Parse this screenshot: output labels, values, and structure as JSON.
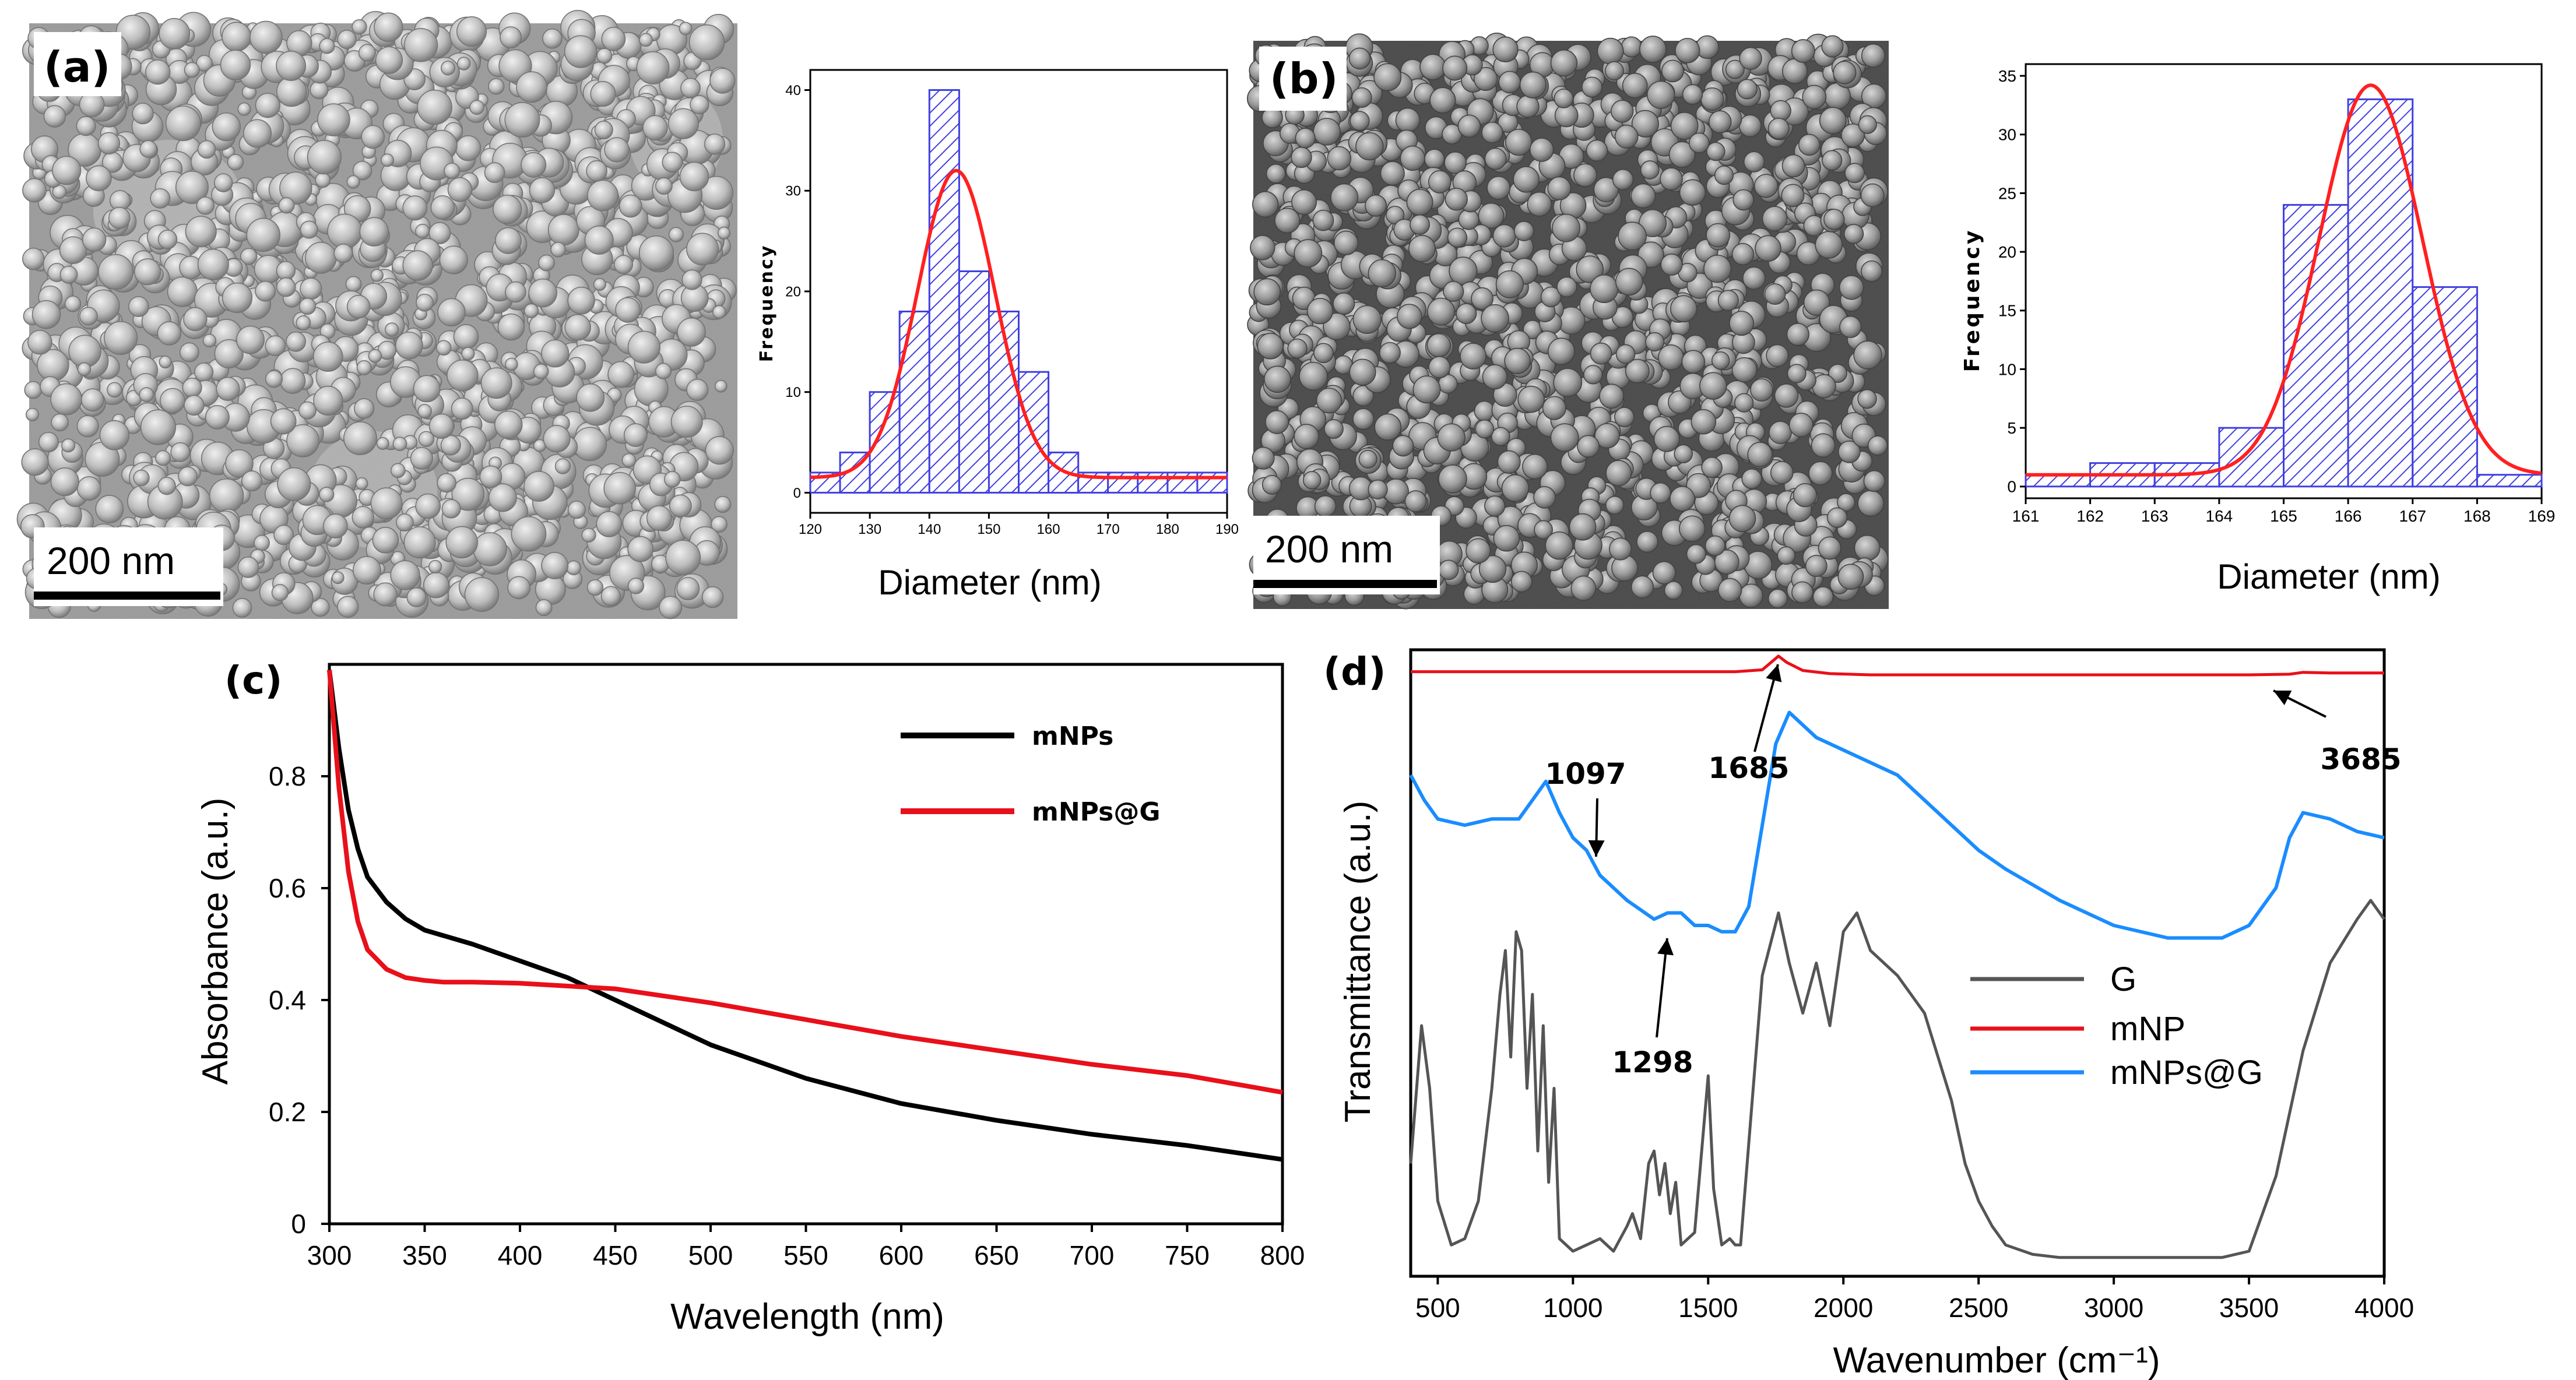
{
  "panel_labels": {
    "a": "(a)",
    "b": "(b)",
    "c": "(c)",
    "d": "(d)"
  },
  "scale_bars": {
    "a": "200 nm",
    "b": "200 nm"
  },
  "colors": {
    "hist_bar": "#4040e0",
    "fit_curve": "#ff2020",
    "black": "#000000",
    "red": "#e8101a",
    "blue": "#1a8cff",
    "gray": "#555555"
  },
  "chart_data": [
    {
      "type": "bar",
      "panel": "a",
      "xlabel": "Diameter (nm)",
      "ylabel": "Frequency",
      "xlim": [
        120,
        190
      ],
      "ylim": [
        -2,
        42
      ],
      "xticks": [
        120,
        130,
        140,
        150,
        160,
        170,
        180,
        190
      ],
      "yticks": [
        0,
        10,
        20,
        30,
        40
      ],
      "bin_width": 5,
      "bin_starts": [
        120,
        125,
        130,
        135,
        140,
        145,
        150,
        155,
        160,
        165,
        170,
        175,
        180,
        185
      ],
      "values": [
        2,
        4,
        10,
        18,
        40,
        22,
        18,
        12,
        4,
        2,
        2,
        2,
        2,
        2
      ],
      "fit": {
        "type": "gaussian",
        "baseline": 1.5,
        "amplitude": 30.5,
        "center": 144.5,
        "sigma": 6.5
      }
    },
    {
      "type": "bar",
      "panel": "b",
      "xlabel": "Diameter (nm)",
      "ylabel": "Frequency",
      "xlim": [
        161,
        169
      ],
      "ylim": [
        -1,
        36
      ],
      "xticks": [
        161,
        162,
        163,
        164,
        165,
        166,
        167,
        168,
        169
      ],
      "yticks": [
        0,
        5,
        10,
        15,
        20,
        25,
        30,
        35
      ],
      "bin_width": 1,
      "bin_starts": [
        161,
        162,
        163,
        164,
        165,
        166,
        167,
        168
      ],
      "values": [
        1,
        2,
        2,
        5,
        24,
        33,
        17,
        1
      ],
      "fit": {
        "type": "gaussian",
        "baseline": 1.0,
        "amplitude": 33.2,
        "center": 166.35,
        "sigma": 0.8
      }
    },
    {
      "type": "line",
      "panel": "c",
      "xlabel": "Wavelength (nm)",
      "ylabel": "Absorbance (a.u.)",
      "xlim": [
        300,
        800
      ],
      "ylim": [
        0,
        1.0
      ],
      "xticks": [
        300,
        350,
        400,
        450,
        500,
        550,
        600,
        650,
        700,
        750,
        800
      ],
      "yticks": [
        0,
        0.2,
        0.4,
        0.6,
        0.8
      ],
      "ytick_labels": [
        "0",
        "0.2",
        "0.4",
        "0.6",
        "0.8"
      ],
      "legend": "top-right",
      "series": [
        {
          "name": "mNPs",
          "x": [
            300,
            305,
            310,
            315,
            320,
            330,
            340,
            350,
            360,
            375,
            400,
            425,
            450,
            475,
            500,
            550,
            600,
            650,
            700,
            750,
            800
          ],
          "values": [
            0.99,
            0.85,
            0.74,
            0.67,
            0.62,
            0.575,
            0.545,
            0.525,
            0.515,
            0.5,
            0.47,
            0.44,
            0.4,
            0.36,
            0.32,
            0.26,
            0.215,
            0.185,
            0.16,
            0.14,
            0.115
          ]
        },
        {
          "name": "mNPs@G",
          "x": [
            300,
            305,
            310,
            315,
            320,
            330,
            340,
            350,
            360,
            375,
            400,
            450,
            500,
            550,
            600,
            650,
            700,
            750,
            800
          ],
          "values": [
            0.99,
            0.78,
            0.63,
            0.54,
            0.49,
            0.455,
            0.44,
            0.435,
            0.432,
            0.432,
            0.43,
            0.42,
            0.395,
            0.365,
            0.335,
            0.31,
            0.285,
            0.265,
            0.235
          ]
        }
      ]
    },
    {
      "type": "line",
      "panel": "d",
      "xlabel": "Wavenumber (cm⁻¹)",
      "ylabel": "Transmittance (a.u.)",
      "xlim": [
        400,
        4000
      ],
      "ylim": [
        0,
        1
      ],
      "xticks": [
        500,
        1000,
        1500,
        2000,
        2500,
        3000,
        3500,
        4000
      ],
      "legend": "right",
      "annotations": [
        {
          "text": "1097",
          "x": 1097
        },
        {
          "text": "1685",
          "x": 1685
        },
        {
          "text": "3685",
          "x": 3685
        },
        {
          "text": "1298",
          "x": 1298
        }
      ],
      "series": [
        {
          "name": "G",
          "x": [
            400,
            440,
            470,
            500,
            550,
            600,
            650,
            700,
            730,
            750,
            770,
            790,
            810,
            830,
            850,
            870,
            890,
            910,
            930,
            950,
            1000,
            1050,
            1100,
            1150,
            1200,
            1220,
            1250,
            1280,
            1300,
            1320,
            1340,
            1360,
            1380,
            1400,
            1450,
            1480,
            1500,
            1520,
            1550,
            1580,
            1600,
            1620,
            1700,
            1760,
            1800,
            1850,
            1900,
            1950,
            2000,
            2050,
            2100,
            2150,
            2200,
            2300,
            2400,
            2450,
            2500,
            2550,
            2600,
            2700,
            2800,
            3000,
            3200,
            3400,
            3500,
            3600,
            3700,
            3800,
            3900,
            3950,
            4000
          ],
          "values": [
            0.18,
            0.4,
            0.3,
            0.12,
            0.05,
            0.06,
            0.12,
            0.3,
            0.45,
            0.52,
            0.35,
            0.55,
            0.52,
            0.3,
            0.45,
            0.2,
            0.4,
            0.15,
            0.3,
            0.06,
            0.04,
            0.05,
            0.06,
            0.04,
            0.08,
            0.1,
            0.06,
            0.18,
            0.2,
            0.13,
            0.18,
            0.1,
            0.15,
            0.05,
            0.07,
            0.22,
            0.32,
            0.14,
            0.05,
            0.06,
            0.05,
            0.05,
            0.48,
            0.58,
            0.5,
            0.42,
            0.5,
            0.4,
            0.55,
            0.58,
            0.52,
            0.5,
            0.48,
            0.42,
            0.28,
            0.18,
            0.12,
            0.08,
            0.05,
            0.035,
            0.03,
            0.03,
            0.03,
            0.03,
            0.04,
            0.16,
            0.36,
            0.5,
            0.57,
            0.6,
            0.57
          ]
        },
        {
          "name": "mNP",
          "x": [
            400,
            800,
            1200,
            1600,
            1700,
            1760,
            1790,
            1850,
            1950,
            2100,
            2500,
            3000,
            3500,
            3650,
            3700,
            3800,
            4000
          ],
          "values": [
            0.965,
            0.965,
            0.965,
            0.965,
            0.968,
            0.99,
            0.98,
            0.967,
            0.962,
            0.96,
            0.96,
            0.96,
            0.96,
            0.961,
            0.964,
            0.963,
            0.963
          ]
        },
        {
          "name": "mNPs@G",
          "x": [
            400,
            450,
            500,
            600,
            700,
            800,
            850,
            900,
            950,
            1000,
            1050,
            1100,
            1200,
            1300,
            1350,
            1400,
            1450,
            1500,
            1550,
            1600,
            1650,
            1700,
            1750,
            1800,
            1850,
            1900,
            2000,
            2100,
            2200,
            2300,
            2400,
            2500,
            2600,
            2800,
            3000,
            3200,
            3400,
            3500,
            3600,
            3650,
            3700,
            3800,
            3900,
            4000
          ],
          "values": [
            0.8,
            0.76,
            0.73,
            0.72,
            0.73,
            0.73,
            0.76,
            0.79,
            0.74,
            0.7,
            0.68,
            0.64,
            0.6,
            0.57,
            0.58,
            0.58,
            0.56,
            0.56,
            0.55,
            0.55,
            0.59,
            0.72,
            0.85,
            0.9,
            0.88,
            0.86,
            0.84,
            0.82,
            0.8,
            0.76,
            0.72,
            0.68,
            0.65,
            0.6,
            0.56,
            0.54,
            0.54,
            0.56,
            0.62,
            0.7,
            0.74,
            0.73,
            0.71,
            0.7
          ]
        }
      ]
    }
  ]
}
